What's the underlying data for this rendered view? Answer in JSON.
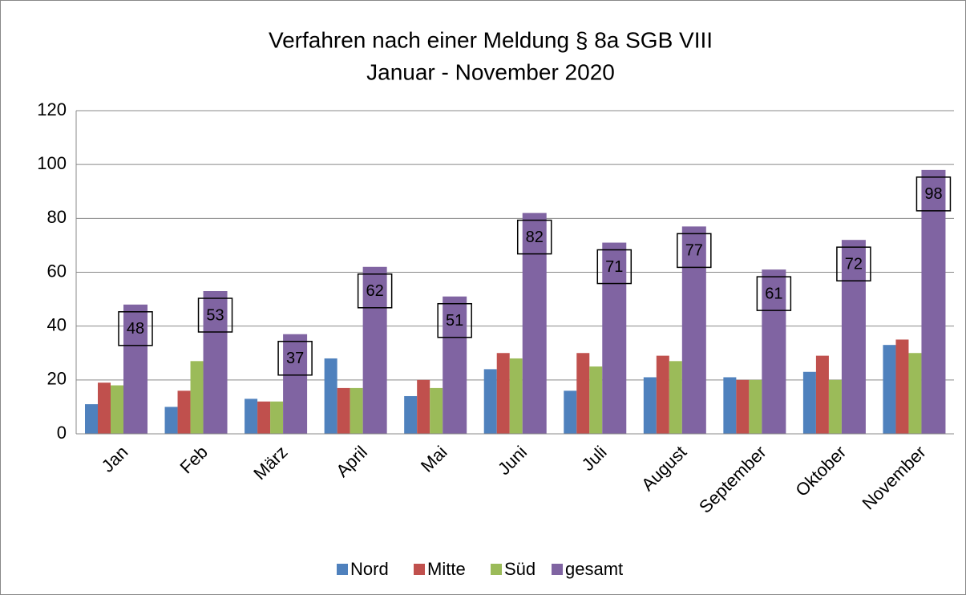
{
  "chart_data": {
    "type": "bar",
    "title": "Verfahren nach einer Meldung § 8a SGB VIII",
    "subtitle": "Januar - November 2020",
    "categories": [
      "Jan",
      "Feb",
      "März",
      "April",
      "Mai",
      "Juni",
      "Juli",
      "August",
      "September",
      "Oktober",
      "November"
    ],
    "series": [
      {
        "name": "Nord",
        "color": "#4f81bd",
        "values": [
          11,
          10,
          13,
          28,
          14,
          24,
          16,
          21,
          21,
          23,
          33
        ]
      },
      {
        "name": "Mitte",
        "color": "#c0504d",
        "values": [
          19,
          16,
          12,
          17,
          20,
          30,
          30,
          29,
          20,
          29,
          35
        ]
      },
      {
        "name": "Süd",
        "color": "#9bbb59",
        "values": [
          18,
          27,
          12,
          17,
          17,
          28,
          25,
          27,
          20,
          20,
          30
        ]
      },
      {
        "name": "gesamt",
        "color": "#8064a2",
        "values": [
          48,
          53,
          37,
          62,
          51,
          82,
          71,
          77,
          61,
          72,
          98
        ]
      }
    ],
    "ylim": [
      0,
      120
    ],
    "yticks": [
      0,
      20,
      40,
      60,
      80,
      100,
      120
    ],
    "grid": true,
    "legend": "bottom"
  }
}
